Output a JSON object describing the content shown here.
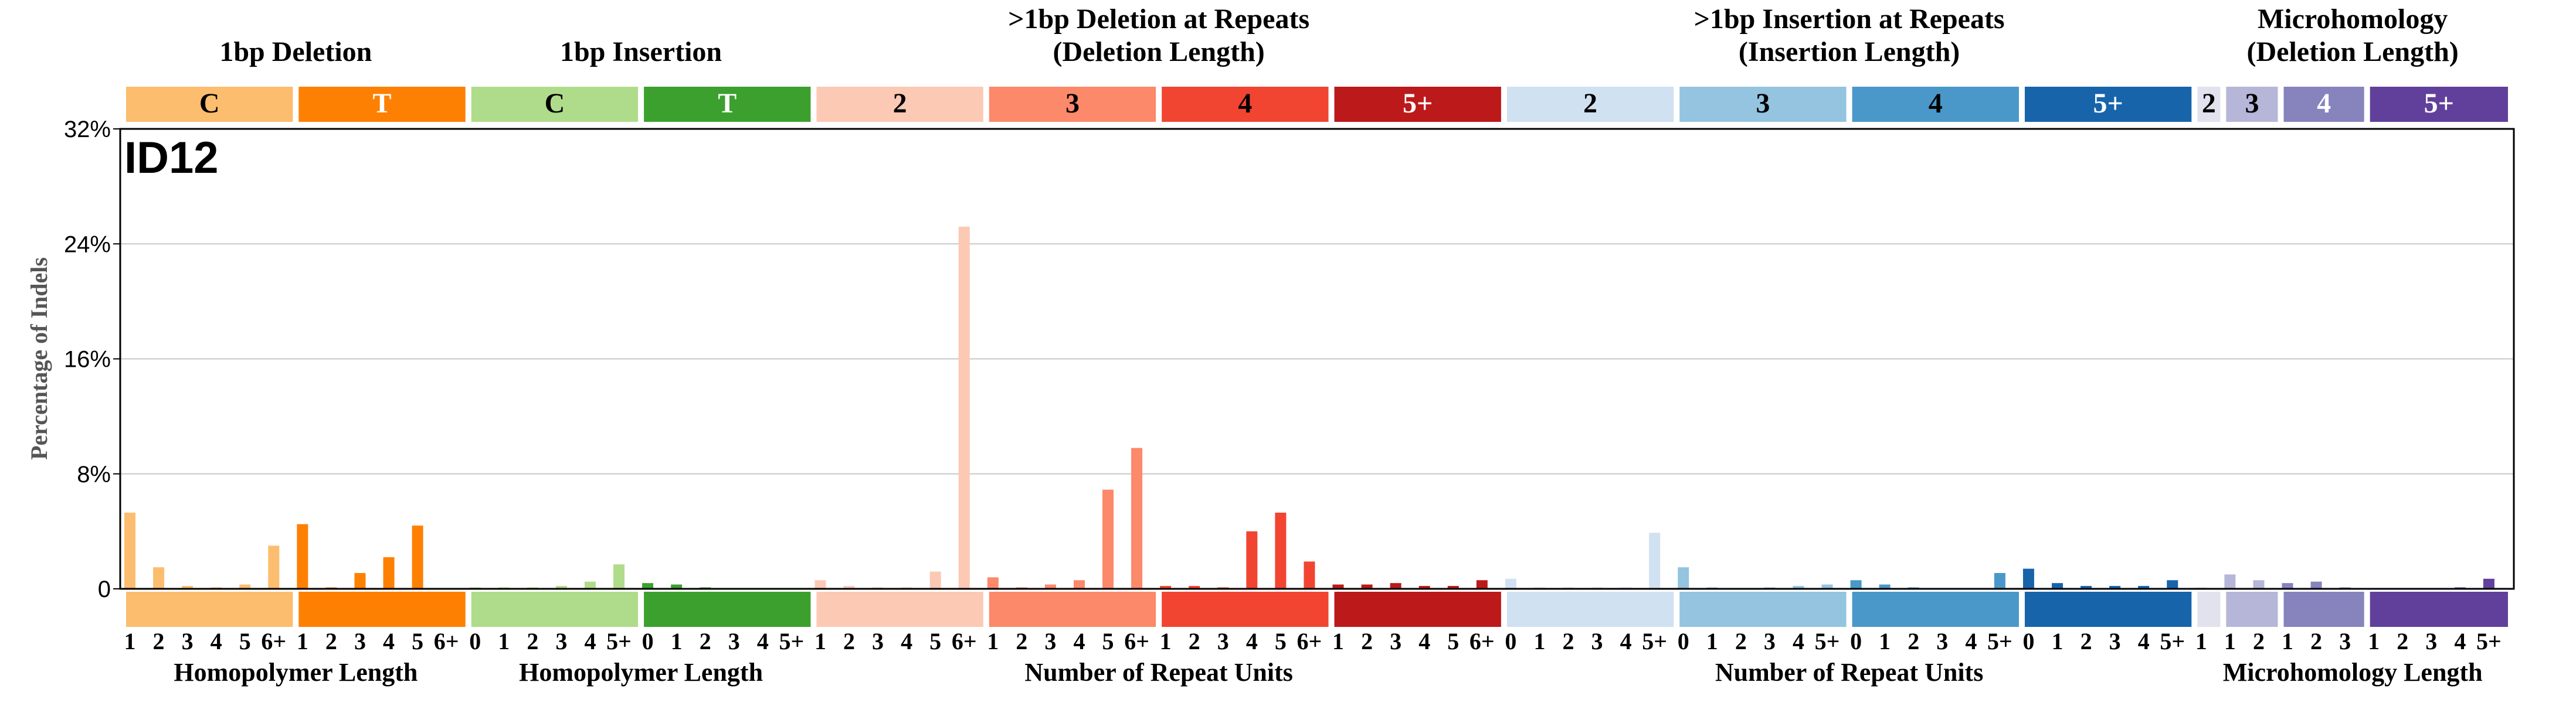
{
  "chart_data": {
    "type": "bar",
    "panel_label": "ID12",
    "ylabel": "Percentage of Indels",
    "ylim": [
      0,
      32
    ],
    "yticks": [
      0,
      8,
      16,
      24,
      32
    ],
    "ytick_labels": [
      "0",
      "8%",
      "16%",
      "24%",
      "32%"
    ],
    "grid": true,
    "top_headers": [
      {
        "label": "1bp Deletion",
        "start": 0,
        "count": 12
      },
      {
        "label": "1bp Insertion",
        "start": 12,
        "count": 12
      },
      {
        "label": ">1bp Deletion at Repeats\n(Deletion Length)",
        "start": 24,
        "count": 24
      },
      {
        "label": ">1bp Insertion at Repeats\n(Insertion Length)",
        "start": 48,
        "count": 24
      },
      {
        "label": "Microhomology\n(Deletion Length)",
        "start": 72,
        "count": 11
      }
    ],
    "bottom_labels": [
      {
        "label": "Homopolymer Length",
        "start": 0,
        "count": 12
      },
      {
        "label": "Homopolymer Length",
        "start": 12,
        "count": 12
      },
      {
        "label": "Number of Repeat Units",
        "start": 24,
        "count": 24
      },
      {
        "label": "Number of Repeat Units",
        "start": 48,
        "count": 24
      },
      {
        "label": "Microhomology Length",
        "start": 72,
        "count": 11
      }
    ],
    "groups": [
      {
        "label": "C",
        "color": "#FCBD6F",
        "text_color": "#000000",
        "ticks": [
          "1",
          "2",
          "3",
          "4",
          "5",
          "6+"
        ],
        "values": [
          5.3,
          1.5,
          0.2,
          0.1,
          0.3,
          3.0
        ]
      },
      {
        "label": "T",
        "color": "#FE8002",
        "text_color": "#FFFFFF",
        "ticks": [
          "1",
          "2",
          "3",
          "4",
          "5",
          "6+"
        ],
        "values": [
          4.5,
          0.1,
          1.1,
          2.2,
          4.4,
          0.0
        ]
      },
      {
        "label": "C",
        "color": "#AFDC8A",
        "text_color": "#000000",
        "ticks": [
          "0",
          "1",
          "2",
          "3",
          "4",
          "5+"
        ],
        "values": [
          0.1,
          0.1,
          0.1,
          0.2,
          0.5,
          1.7
        ]
      },
      {
        "label": "T",
        "color": "#3CA02E",
        "text_color": "#FFFFFF",
        "ticks": [
          "0",
          "1",
          "2",
          "3",
          "4",
          "5+"
        ],
        "values": [
          0.4,
          0.3,
          0.1,
          0.0,
          0.0,
          0.0
        ]
      },
      {
        "label": "2",
        "color": "#FCC9B4",
        "text_color": "#000000",
        "ticks": [
          "1",
          "2",
          "3",
          "4",
          "5",
          "6+"
        ],
        "values": [
          0.6,
          0.2,
          0.1,
          0.1,
          1.2,
          25.2
        ]
      },
      {
        "label": "3",
        "color": "#FB896A",
        "text_color": "#000000",
        "ticks": [
          "1",
          "2",
          "3",
          "4",
          "5",
          "6+"
        ],
        "values": [
          0.8,
          0.1,
          0.3,
          0.6,
          6.9,
          9.8
        ]
      },
      {
        "label": "4",
        "color": "#F14532",
        "text_color": "#000000",
        "ticks": [
          "1",
          "2",
          "3",
          "4",
          "5",
          "6+"
        ],
        "values": [
          0.2,
          0.2,
          0.1,
          4.0,
          5.3,
          1.9
        ]
      },
      {
        "label": "5+",
        "color": "#BC191A",
        "text_color": "#FFFFFF",
        "ticks": [
          "1",
          "2",
          "3",
          "4",
          "5",
          "6+"
        ],
        "values": [
          0.3,
          0.3,
          0.4,
          0.2,
          0.2,
          0.6
        ]
      },
      {
        "label": "2",
        "color": "#D0E1F2",
        "text_color": "#000000",
        "ticks": [
          "0",
          "1",
          "2",
          "3",
          "4",
          "5+"
        ],
        "values": [
          0.7,
          0.1,
          0.1,
          0.1,
          0.1,
          3.9
        ]
      },
      {
        "label": "3",
        "color": "#94C4DF",
        "text_color": "#000000",
        "ticks": [
          "0",
          "1",
          "2",
          "3",
          "4",
          "5+"
        ],
        "values": [
          1.5,
          0.1,
          0.0,
          0.1,
          0.2,
          0.3
        ]
      },
      {
        "label": "4",
        "color": "#4A98C9",
        "text_color": "#000000",
        "ticks": [
          "0",
          "1",
          "2",
          "3",
          "4",
          "5+"
        ],
        "values": [
          0.6,
          0.3,
          0.1,
          0.0,
          0.0,
          1.1
        ]
      },
      {
        "label": "5+",
        "color": "#1764AB",
        "text_color": "#FFFFFF",
        "ticks": [
          "0",
          "1",
          "2",
          "3",
          "4",
          "5+"
        ],
        "values": [
          1.4,
          0.4,
          0.2,
          0.2,
          0.2,
          0.6
        ]
      },
      {
        "label": "2",
        "color": "#E2E2EF",
        "text_color": "#000000",
        "ticks": [
          "1"
        ],
        "values": [
          0.1
        ]
      },
      {
        "label": "3",
        "color": "#B6B6D8",
        "text_color": "#000000",
        "ticks": [
          "1",
          "2"
        ],
        "values": [
          1.0,
          0.6
        ]
      },
      {
        "label": "4",
        "color": "#8683BD",
        "text_color": "#FFFFFF",
        "ticks": [
          "1",
          "2",
          "3"
        ],
        "values": [
          0.4,
          0.5,
          0.1
        ]
      },
      {
        "label": "5+",
        "color": "#61409B",
        "text_color": "#FFFFFF",
        "ticks": [
          "1",
          "2",
          "3",
          "4",
          "5+"
        ],
        "values": [
          0.0,
          0.0,
          0.0,
          0.1,
          0.7
        ]
      }
    ]
  }
}
